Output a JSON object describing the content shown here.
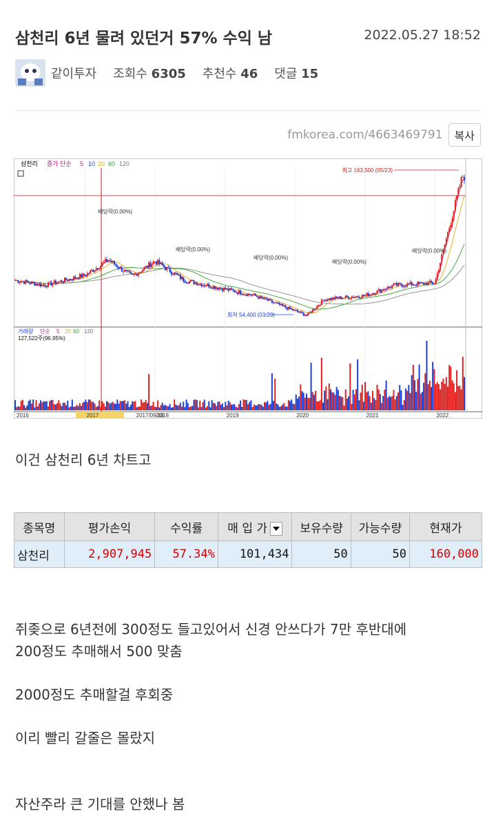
{
  "post": {
    "title": "삼천리 6년 물려 있던거 57% 수익 남",
    "date": "2022.05.27 18:52",
    "author": "같이투자",
    "views_label": "조회수",
    "views": "6305",
    "recommend_label": "추천수",
    "recommend": "46",
    "comments_label": "댓글",
    "comments": "15",
    "url": "fmkorea.com/4663469791",
    "copy_label": "복사"
  },
  "chart": {
    "stock_name": "삼천리",
    "ma_label": "종가 단순",
    "ma_periods": [
      "5",
      "10",
      "20",
      "60",
      "120"
    ],
    "high_label": "최고 163,500 (05/23)",
    "low_label": "최저 54,400 (03/23)",
    "dividend_labels": [
      "배당락(0.00%)",
      "배당락(0.00%)",
      "배당락(0.00%)",
      "배당락(0.00%)",
      "배당락(0.00%)"
    ],
    "volume_label": "거래량",
    "volume_ma_label": "단순",
    "volume_ma_periods": [
      "5",
      "20",
      "60",
      "120"
    ],
    "volume_value": "127,522주(96.95%)",
    "x_labels": [
      "2016",
      "2017",
      "2017/09/18",
      "2018",
      "2019",
      "2020",
      "2021",
      "2022"
    ],
    "colors": {
      "up": "#e0201e",
      "down": "#1a3fd0",
      "ma5": "#c71585",
      "ma20": "#e6a817",
      "ma60": "#2e9e2e",
      "ma120": "#888888"
    }
  },
  "chart_data": {
    "type": "line",
    "title": "",
    "series": [
      {
        "values": [
          {
            "x": "2016",
            "y": 82000
          },
          {
            "x": "2016-06",
            "y": 78000
          },
          {
            "x": "2017",
            "y": 86000
          },
          {
            "x": "2017-05",
            "y": 98000
          },
          {
            "x": "2017-09",
            "y": 85000
          },
          {
            "x": "2018",
            "y": 97000
          },
          {
            "x": "2018-06",
            "y": 82000
          },
          {
            "x": "2019",
            "y": 75000
          },
          {
            "x": "2019-06",
            "y": 70000
          },
          {
            "x": "2020-03",
            "y": 54400
          },
          {
            "x": "2020-06",
            "y": 67000
          },
          {
            "x": "2021",
            "y": 70000
          },
          {
            "x": "2021-06",
            "y": 78000
          },
          {
            "x": "2022",
            "y": 80000
          },
          {
            "x": "2022-05-23",
            "y": 163500
          }
        ]
      }
    ]
  },
  "body": {
    "line1": "이건 삼천리 6년 차트고",
    "line2": "쥐좆으로 6년전에 300정도 들고있어서 신경 안쓰다가 7만 후반대에",
    "line3": "200정도 추매해서 500 맞춤",
    "line4": "2000정도 추매할걸 후회중",
    "line5": "이리 빨리 갈줄은 몰랐지",
    "line6": "자산주라 큰 기대를 안했나 봄"
  },
  "table": {
    "headers": [
      "종목명",
      "평가손익",
      "수익률",
      "매 입 가",
      "보유수량",
      "가능수량",
      "현재가"
    ],
    "row": {
      "name": "삼천리",
      "pnl": "2,907,945",
      "rate": "57.34%",
      "buy_price": "101,434",
      "qty": "50",
      "avail_qty": "50",
      "current_price": "160,000"
    }
  }
}
